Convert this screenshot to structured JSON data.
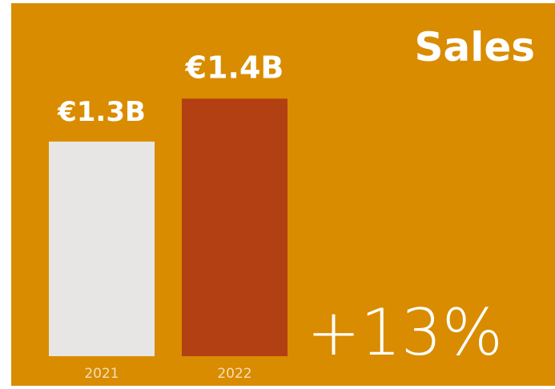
{
  "chart_data": {
    "type": "bar",
    "title": "Sales",
    "categories": [
      "2021",
      "2022"
    ],
    "values": [
      1.3,
      1.4
    ],
    "value_labels": [
      "€1.3B",
      "€1.4B"
    ],
    "colors": [
      "#e8e6e4",
      "#b34012"
    ],
    "background": "#d98c00",
    "annotation": "+13%",
    "ylim": [
      0.8,
      1.6
    ]
  }
}
